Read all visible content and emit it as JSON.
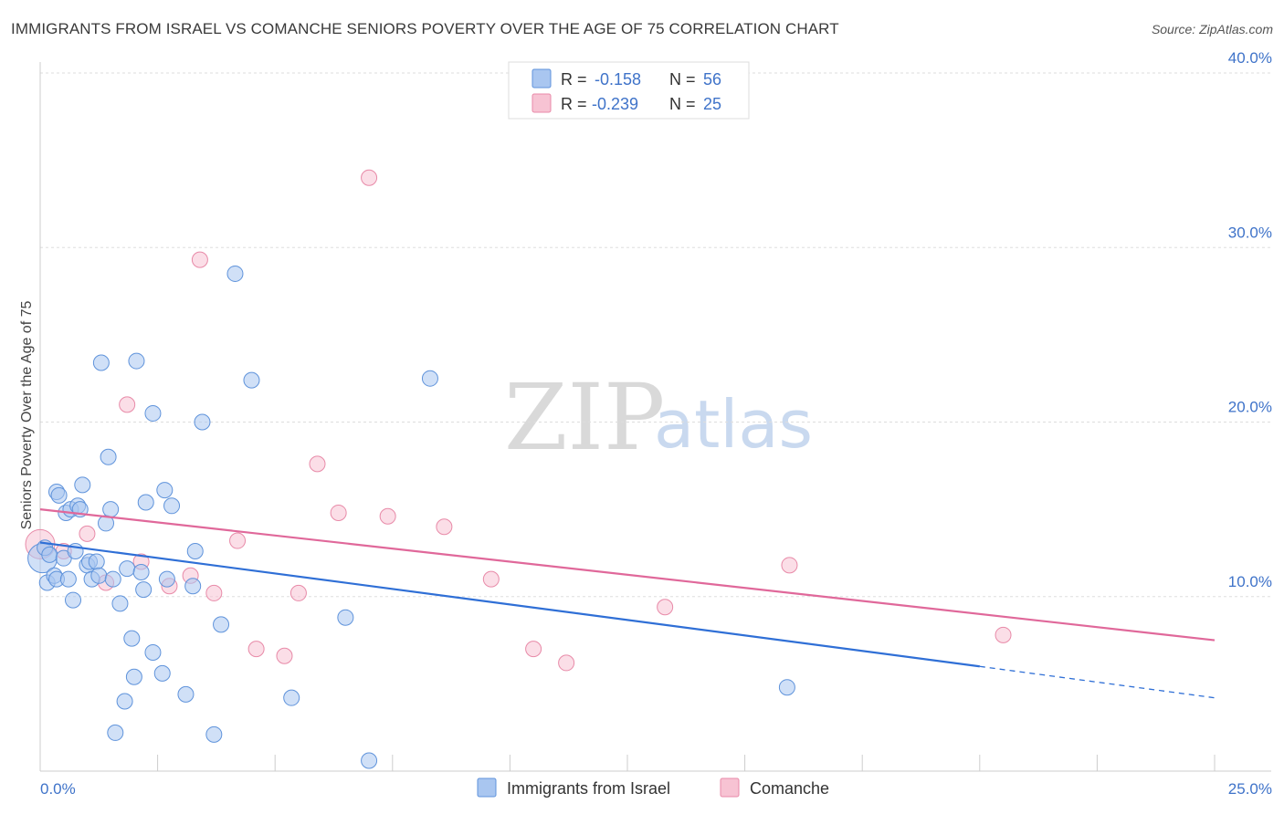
{
  "title": "IMMIGRANTS FROM ISRAEL VS COMANCHE SENIORS POVERTY OVER THE AGE OF 75 CORRELATION CHART",
  "source": "Source: ZipAtlas.com",
  "watermark": {
    "zip": "ZIP",
    "atlas": "atlas"
  },
  "legend": {
    "series1": {
      "r_label": "R =",
      "r_value": "-0.158",
      "n_label": "N =",
      "n_value": "56"
    },
    "series2": {
      "r_label": "R =",
      "r_value": "-0.239",
      "n_label": "N =",
      "n_value": "25"
    }
  },
  "bottom_legend": {
    "series1": "Immigrants from Israel",
    "series2": "Comanche"
  },
  "colors": {
    "series1_fill": "#a9c6f0",
    "series1_stroke": "#5f93db",
    "series1_line": "#2f6fd6",
    "series2_fill": "#f7c3d3",
    "series2_stroke": "#e88aa8",
    "series2_line": "#e0689a",
    "tick_text": "#3f73c9",
    "grid": "#dddddd"
  },
  "chart_data": {
    "type": "scatter",
    "title": "IMMIGRANTS FROM ISRAEL VS COMANCHE SENIORS POVERTY OVER THE AGE OF 75 CORRELATION CHART",
    "xlabel": "",
    "ylabel": "Seniors Poverty Over the Age of 75",
    "xlim": [
      0,
      25
    ],
    "ylim": [
      0,
      40
    ],
    "x_tick_labels": [
      "0.0%",
      "25.0%"
    ],
    "y_ticks": [
      10,
      20,
      30,
      40
    ],
    "y_tick_labels": [
      "10.0%",
      "20.0%",
      "30.0%",
      "40.0%"
    ],
    "series": [
      {
        "name": "Immigrants from Israel",
        "points": [
          [
            0.05,
            12.2
          ],
          [
            0.1,
            12.8
          ],
          [
            0.15,
            10.8
          ],
          [
            0.2,
            12.4
          ],
          [
            0.3,
            11.2
          ],
          [
            0.35,
            16.0
          ],
          [
            0.35,
            11.0
          ],
          [
            0.4,
            15.8
          ],
          [
            0.5,
            12.2
          ],
          [
            0.55,
            14.8
          ],
          [
            0.6,
            11.0
          ],
          [
            0.65,
            15.0
          ],
          [
            0.7,
            9.8
          ],
          [
            0.75,
            12.6
          ],
          [
            0.8,
            15.2
          ],
          [
            0.85,
            15.0
          ],
          [
            0.9,
            16.4
          ],
          [
            1.0,
            11.8
          ],
          [
            1.05,
            12.0
          ],
          [
            1.1,
            11.0
          ],
          [
            1.2,
            12.0
          ],
          [
            1.25,
            11.2
          ],
          [
            1.3,
            23.4
          ],
          [
            1.4,
            14.2
          ],
          [
            1.45,
            18.0
          ],
          [
            1.5,
            15.0
          ],
          [
            1.55,
            11.0
          ],
          [
            1.6,
            2.2
          ],
          [
            1.7,
            9.6
          ],
          [
            1.8,
            4.0
          ],
          [
            1.85,
            11.6
          ],
          [
            1.95,
            7.6
          ],
          [
            2.0,
            5.4
          ],
          [
            2.05,
            23.5
          ],
          [
            2.15,
            11.4
          ],
          [
            2.2,
            10.4
          ],
          [
            2.25,
            15.4
          ],
          [
            2.4,
            6.8
          ],
          [
            2.4,
            20.5
          ],
          [
            2.6,
            5.6
          ],
          [
            2.65,
            16.1
          ],
          [
            2.7,
            11.0
          ],
          [
            2.8,
            15.2
          ],
          [
            3.1,
            4.4
          ],
          [
            3.25,
            10.6
          ],
          [
            3.3,
            12.6
          ],
          [
            3.45,
            20.0
          ],
          [
            3.7,
            2.1
          ],
          [
            3.85,
            8.4
          ],
          [
            4.15,
            28.5
          ],
          [
            4.5,
            22.4
          ],
          [
            5.35,
            4.2
          ],
          [
            6.5,
            8.8
          ],
          [
            7.0,
            0.6
          ],
          [
            8.3,
            22.5
          ],
          [
            15.9,
            4.8
          ]
        ]
      },
      {
        "name": "Comanche",
        "points": [
          [
            0.0,
            13.0
          ],
          [
            0.5,
            12.6
          ],
          [
            1.0,
            13.6
          ],
          [
            1.4,
            10.8
          ],
          [
            1.85,
            21.0
          ],
          [
            2.15,
            12.0
          ],
          [
            2.75,
            10.6
          ],
          [
            3.2,
            11.2
          ],
          [
            3.4,
            29.3
          ],
          [
            3.7,
            10.2
          ],
          [
            4.2,
            13.2
          ],
          [
            4.6,
            7.0
          ],
          [
            5.2,
            6.6
          ],
          [
            5.5,
            10.2
          ],
          [
            5.9,
            17.6
          ],
          [
            6.35,
            14.8
          ],
          [
            7.0,
            34.0
          ],
          [
            7.4,
            14.6
          ],
          [
            8.6,
            14.0
          ],
          [
            9.6,
            11.0
          ],
          [
            10.5,
            7.0
          ],
          [
            11.2,
            6.2
          ],
          [
            13.3,
            9.4
          ],
          [
            15.95,
            11.8
          ],
          [
            20.5,
            7.8
          ]
        ]
      }
    ],
    "trend_lines": [
      {
        "series": "Immigrants from Israel",
        "x0": 0,
        "y0": 13.1,
        "x1": 20.0,
        "y1": 6.0,
        "dashed_to_x": 25,
        "dashed_to_y": 4.2
      },
      {
        "series": "Comanche",
        "x0": 0,
        "y0": 15.0,
        "x1": 25,
        "y1": 7.5
      }
    ]
  }
}
